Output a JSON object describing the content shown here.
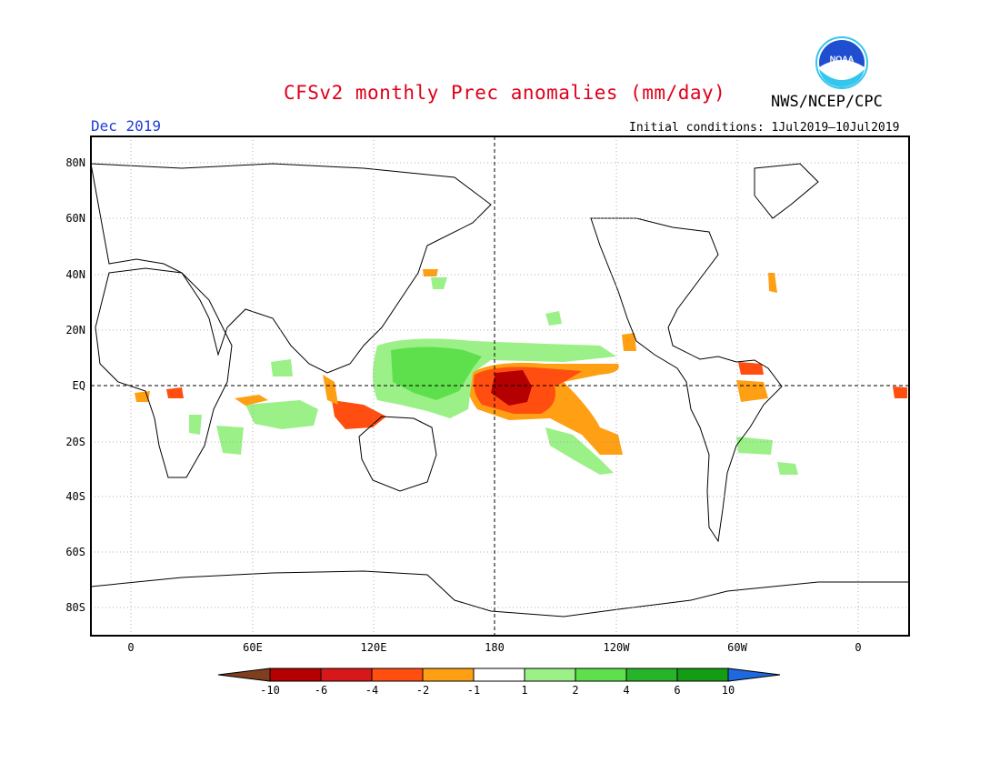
{
  "title": "CFSv2 monthly Prec anomalies (mm/day)",
  "org": "NWS/NCEP/CPC",
  "logo_text": "NOAA",
  "month": "Dec 2019",
  "initial_conditions": "Initial conditions: 1Jul2019–10Jul2019",
  "lat_labels": [
    "80N",
    "60N",
    "40N",
    "20N",
    "EQ",
    "20S",
    "40S",
    "60S",
    "80S"
  ],
  "lon_labels": [
    "0",
    "60E",
    "120E",
    "180",
    "120W",
    "60W",
    "0"
  ],
  "colorbar": {
    "labels": [
      "-10",
      "-6",
      "-4",
      "-2",
      "-1",
      "1",
      "2",
      "4",
      "6",
      "10"
    ],
    "colors": [
      "#7f3f1f",
      "#b40000",
      "#d81818",
      "#ff4e10",
      "#ff9f14",
      "#ffffff",
      "#9cf088",
      "#5ee04c",
      "#28b428",
      "#149c14",
      "#1e68e0"
    ]
  },
  "colors": {
    "strong_dry": "#b40000",
    "dry": "#e83818",
    "mod_dry": "#ff9f14",
    "light_wet": "#9cf088",
    "wet": "#5ee04c",
    "strong_wet": "#28b428"
  }
}
